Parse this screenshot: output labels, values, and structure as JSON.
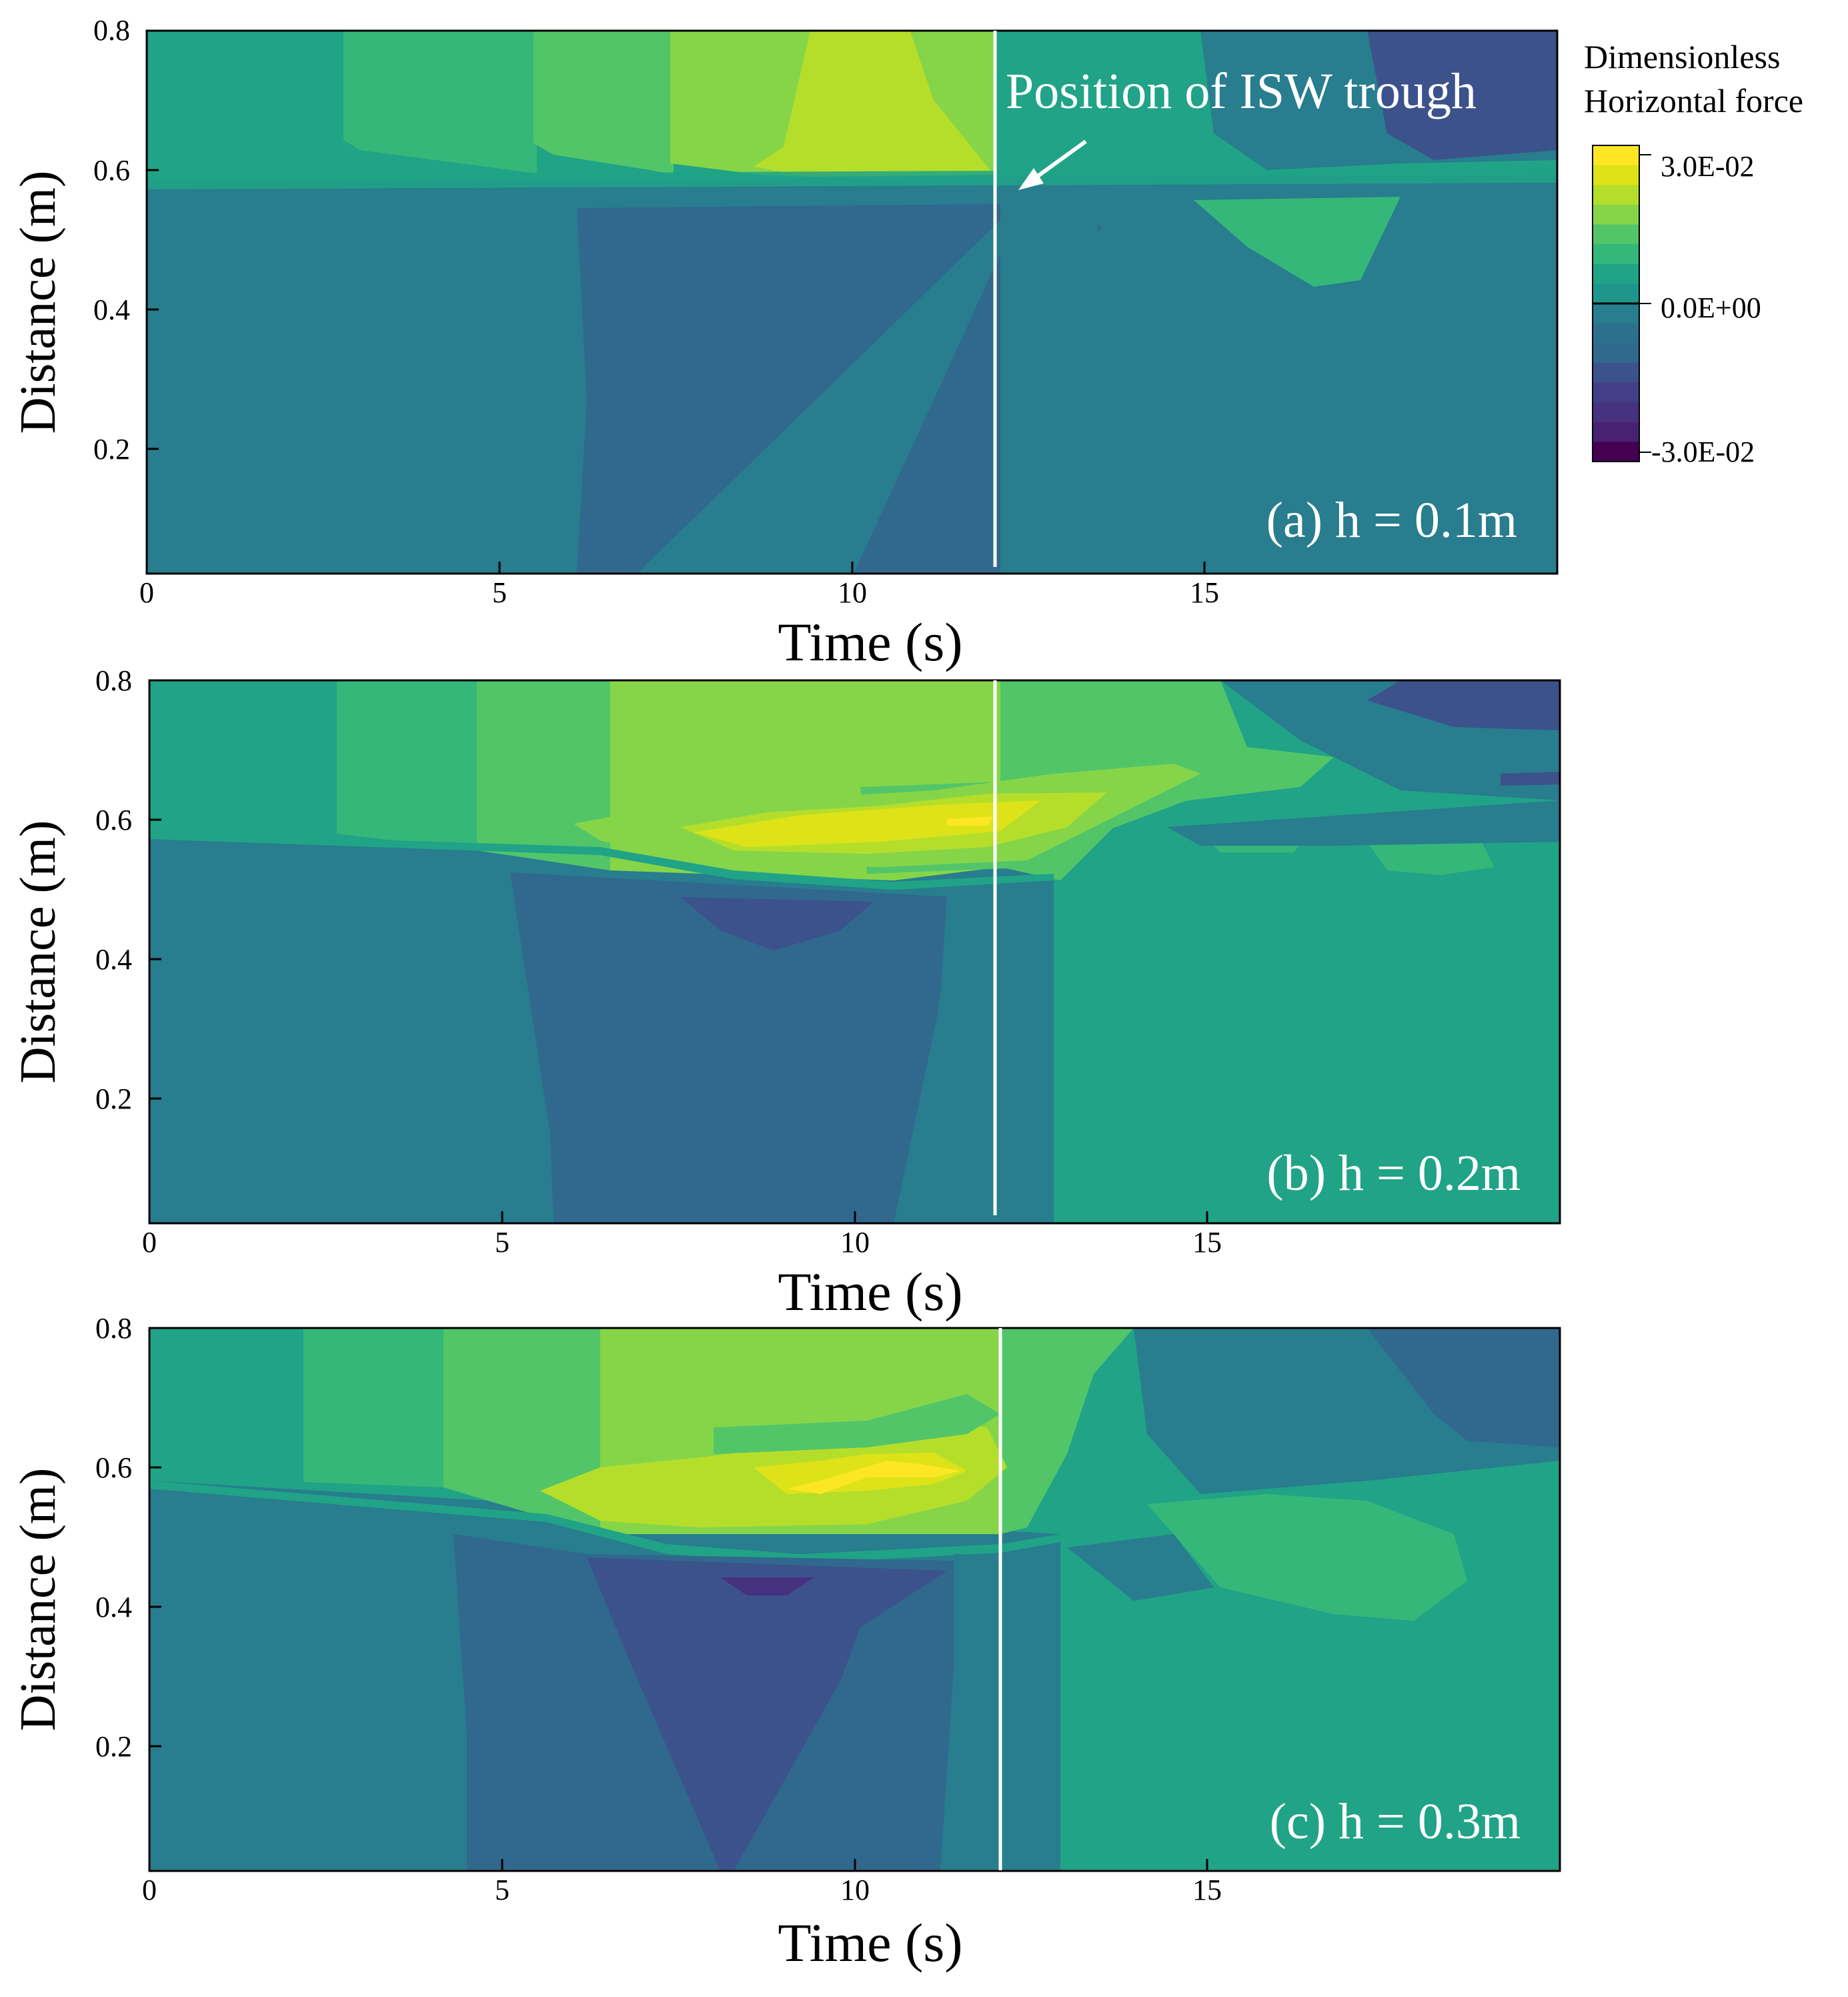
{
  "chart_data": [
    {
      "type": "heatmap",
      "panel_label": "(a) h = 0.1m",
      "xlabel": "Time (s)",
      "ylabel": "Distance (m)",
      "xlim": [
        0,
        20
      ],
      "ylim": [
        0.03,
        0.8
      ],
      "x_ticks": [
        "0",
        "5",
        "10",
        "15"
      ],
      "y_ticks": [
        "0.2",
        "0.4",
        "0.6",
        "0.8"
      ],
      "trough_time": 12.1,
      "annotation": "Position of ISW trough",
      "description_of_field": "horizontal force contours",
      "regions": [
        {
          "level": 0.0,
          "t_start": 0,
          "t_end": 20,
          "z_start": 0.03,
          "z_end": 0.8
        },
        {
          "level": -0.004,
          "t_start": 0,
          "t_end": 20,
          "z_start": 0.03,
          "z_end": 0.59
        },
        {
          "level": 0.004,
          "t_start": 0,
          "t_end": 2.8,
          "z_start": 0.59,
          "z_end": 0.8
        },
        {
          "level": 0.008,
          "t_start": 2.8,
          "t_end": 5.5,
          "z_start": 0.6,
          "z_end": 0.8
        },
        {
          "level": 0.012,
          "t_start": 5.5,
          "t_end": 7.5,
          "z_start": 0.61,
          "z_end": 0.8
        },
        {
          "level": 0.016,
          "t_start": 7.5,
          "t_end": 9.5,
          "z_start": 0.6,
          "z_end": 0.8
        },
        {
          "level": 0.02,
          "t_start": 9.5,
          "t_end": 11.2,
          "z_start": 0.6,
          "z_end": 0.8
        },
        {
          "level": -0.008,
          "t_start": 6.2,
          "t_end": 13.3,
          "z_start": 0.03,
          "z_end": 0.54
        },
        {
          "level": 0.004,
          "t_start": 14.8,
          "t_end": 17.8,
          "z_start": 0.42,
          "z_end": 0.55
        },
        {
          "level": -0.012,
          "t_start": 17.0,
          "t_end": 20,
          "z_start": 0.65,
          "z_end": 0.8
        }
      ]
    },
    {
      "type": "heatmap",
      "panel_label": "(b) h = 0.2m",
      "xlabel": "Time (s)",
      "ylabel": "Distance (m)",
      "xlim": [
        0,
        20
      ],
      "ylim": [
        0.03,
        0.8
      ],
      "x_ticks": [
        "0",
        "5",
        "10",
        "15"
      ],
      "y_ticks": [
        "0.2",
        "0.4",
        "0.6",
        "0.8"
      ],
      "trough_time": 12.0,
      "regions": [
        {
          "level": 0.0,
          "t_start": 0,
          "t_end": 20,
          "z_start": 0.03,
          "z_end": 0.8
        },
        {
          "level": -0.004,
          "t_start": 0,
          "t_end": 12.8,
          "z_start": 0.03,
          "z_end": 0.58
        },
        {
          "level": 0.004,
          "t_start": 0,
          "t_end": 2.7,
          "z_start": 0.58,
          "z_end": 0.8
        },
        {
          "level": 0.008,
          "t_start": 2.7,
          "t_end": 4.8,
          "z_start": 0.6,
          "z_end": 0.8
        },
        {
          "level": 0.012,
          "t_start": 4.8,
          "t_end": 6.5,
          "z_start": 0.56,
          "z_end": 0.8
        },
        {
          "level": 0.016,
          "t_start": 6.5,
          "t_end": 11.5,
          "z_start": 0.56,
          "z_end": 0.8
        },
        {
          "level": 0.02,
          "t_start": 7.8,
          "t_end": 13.2,
          "z_start": 0.57,
          "z_end": 0.64
        },
        {
          "level": 0.024,
          "t_start": 11.2,
          "t_end": 12.0,
          "z_start": 0.6,
          "z_end": 0.61
        },
        {
          "level": -0.008,
          "t_start": 5.8,
          "t_end": 11.3,
          "z_start": 0.03,
          "z_end": 0.5
        },
        {
          "level": -0.012,
          "t_start": 7.5,
          "t_end": 10.1,
          "z_start": 0.42,
          "z_end": 0.49
        },
        {
          "level": 0.004,
          "t_start": 16.3,
          "t_end": 18.2,
          "z_start": 0.53,
          "z_end": 0.59
        },
        {
          "level": -0.012,
          "t_start": 16.8,
          "t_end": 20,
          "z_start": 0.72,
          "z_end": 0.8
        }
      ]
    },
    {
      "type": "heatmap",
      "panel_label": "(c) h = 0.3m",
      "xlabel": "Time (s)",
      "ylabel": "Distance (m)",
      "xlim": [
        0,
        20
      ],
      "ylim": [
        0.03,
        0.8
      ],
      "x_ticks": [
        "0",
        "5",
        "10",
        "15"
      ],
      "y_ticks": [
        "0.2",
        "0.4",
        "0.6",
        "0.8"
      ],
      "trough_time": 12.1,
      "regions": [
        {
          "level": 0.0,
          "t_start": 0,
          "t_end": 20,
          "z_start": 0.03,
          "z_end": 0.8
        },
        {
          "level": -0.004,
          "t_start": 0,
          "t_end": 12.9,
          "z_start": 0.03,
          "z_end": 0.58
        },
        {
          "level": 0.004,
          "t_start": 0,
          "t_end": 2.2,
          "z_start": 0.58,
          "z_end": 0.8
        },
        {
          "level": 0.008,
          "t_start": 2.2,
          "t_end": 4.3,
          "z_start": 0.58,
          "z_end": 0.8
        },
        {
          "level": 0.012,
          "t_start": 4.3,
          "t_end": 6.3,
          "z_start": 0.52,
          "z_end": 0.8
        },
        {
          "level": 0.016,
          "t_start": 6.3,
          "t_end": 11.8,
          "z_start": 0.5,
          "z_end": 0.8
        },
        {
          "level": 0.02,
          "t_start": 6.8,
          "t_end": 12.0,
          "z_start": 0.53,
          "z_end": 0.63
        },
        {
          "level": 0.024,
          "t_start": 8.8,
          "t_end": 11.2,
          "z_start": 0.58,
          "z_end": 0.62
        },
        {
          "level": -0.008,
          "t_start": 4.5,
          "t_end": 11.3,
          "z_start": 0.03,
          "z_end": 0.47
        },
        {
          "level": -0.012,
          "t_start": 6.2,
          "t_end": 10.0,
          "z_start": 0.03,
          "z_end": 0.45
        },
        {
          "level": 0.004,
          "t_start": 15.0,
          "t_end": 19.0,
          "z_start": 0.39,
          "z_end": 0.52
        },
        {
          "level": -0.008,
          "t_start": 17.5,
          "t_end": 20,
          "z_start": 0.6,
          "z_end": 0.8
        }
      ]
    }
  ],
  "legend": {
    "title_line1": "Dimensionless",
    "title_line2": "Horizontal force",
    "max_label": "3.0E-02",
    "mid_label": "0.0E+00",
    "min_label": "-3.0E-02",
    "levels": [
      0.03,
      0.026,
      0.022,
      0.018,
      0.014,
      0.01,
      0.006,
      0.002,
      -0.002,
      -0.006,
      -0.01,
      -0.014,
      -0.018,
      -0.022,
      -0.026,
      -0.03
    ]
  },
  "colors": {
    "trough_line": "#ffffff",
    "level_neg_030": "#440154",
    "level_neg_022": "#46327e",
    "level_neg_014": "#3b528b",
    "level_neg_008": "#31688e",
    "level_neg_004": "#287d8e",
    "level_zero": "#20a386",
    "level_pos_004": "#35b779",
    "level_pos_008": "#52c569",
    "level_pos_012": "#86d549",
    "level_pos_016": "#b5de2b",
    "level_pos_020": "#dde318",
    "level_pos_030": "#fde725"
  }
}
